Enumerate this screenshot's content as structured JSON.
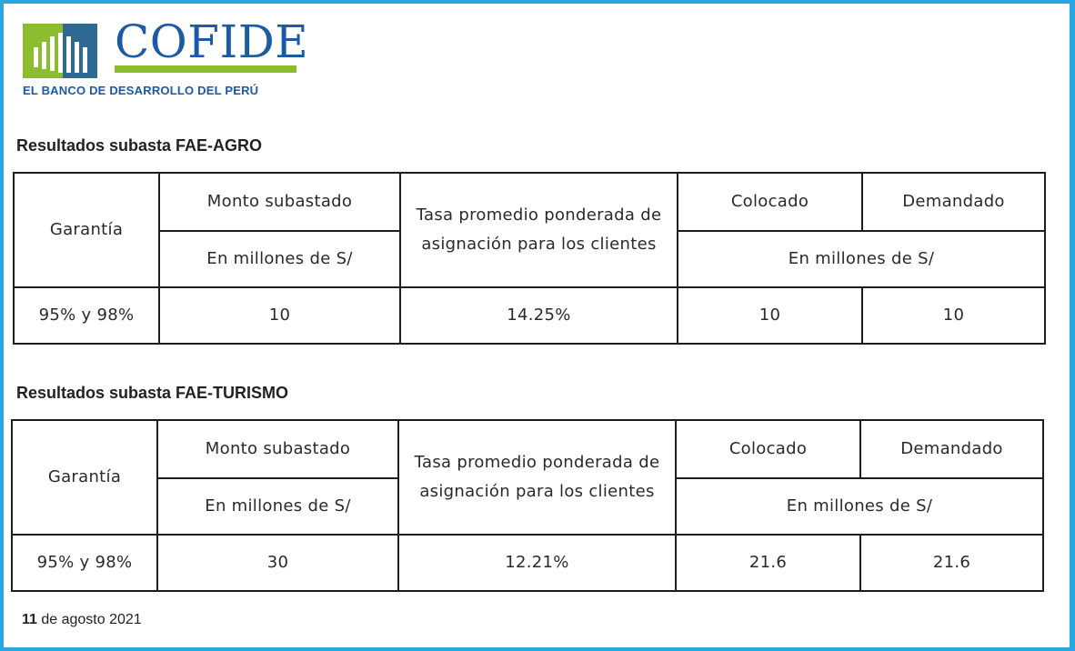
{
  "logo": {
    "name": "COFIDE",
    "tagline": "EL BANCO DE DESARROLLO DEL PERÚ",
    "brand_blue": "#1c5aa3",
    "brand_green": "#8cbd2f"
  },
  "tables": [
    {
      "title": "Resultados subasta FAE-AGRO",
      "headers": {
        "garantia": "Garantía",
        "monto": "Monto subastado",
        "monto_unit": "En millones de S/",
        "tasa": "Tasa promedio ponderada de asignación para los clientes",
        "colocado": "Colocado",
        "demandado": "Demandado",
        "units": "En millones de S/"
      },
      "row": {
        "garantia": "95% y 98%",
        "monto": "10",
        "tasa": "14.25%",
        "colocado": "10",
        "demandado": "10"
      }
    },
    {
      "title": "Resultados subasta FAE-TURISMO",
      "headers": {
        "garantia": "Garantía",
        "monto": "Monto subastado",
        "monto_unit": "En millones de S/",
        "tasa": "Tasa promedio ponderada de asignación para los clientes",
        "colocado": "Colocado",
        "demandado": "Demandado",
        "units": "En millones de S/"
      },
      "row": {
        "garantia": "95% y 98%",
        "monto": "30",
        "tasa": "12.21%",
        "colocado": "21.6",
        "demandado": "21.6"
      }
    }
  ],
  "footer": {
    "day": "11",
    "rest": " de agosto 2021"
  }
}
